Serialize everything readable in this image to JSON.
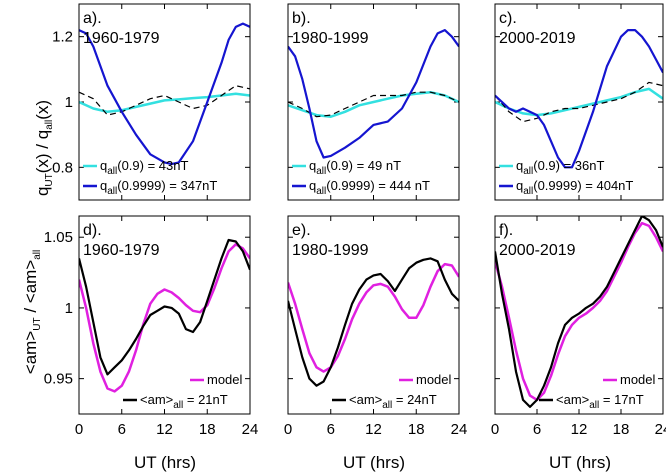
{
  "chart_data": [
    {
      "type": "line",
      "panel_label": "a).",
      "period": "1960-1979",
      "ylabel": "q_UT(x) / q_all(x)",
      "xlim": [
        0,
        24
      ],
      "ylim": [
        0.7,
        1.3
      ],
      "series": [
        {
          "name": "q_all(0.9) = 43nT",
          "color": "#33e0e0",
          "dash": "",
          "width": 2.5,
          "x": [
            0,
            2,
            4,
            6,
            8,
            10,
            12,
            14,
            16,
            18,
            20,
            22,
            24
          ],
          "y": [
            1.0,
            0.98,
            0.97,
            0.975,
            0.985,
            0.995,
            1.005,
            1.008,
            1.012,
            1.015,
            1.02,
            1.025,
            1.02
          ]
        },
        {
          "name": "",
          "color": "#000000",
          "dash": "6,4",
          "width": 1.2,
          "x": [
            0,
            2,
            4,
            6,
            8,
            10,
            12,
            14,
            16,
            18,
            20,
            22,
            24
          ],
          "y": [
            1.03,
            1.01,
            0.96,
            0.97,
            0.99,
            1.01,
            1.02,
            1.0,
            0.98,
            0.99,
            1.02,
            1.05,
            1.04
          ]
        },
        {
          "name": "q_all(0.9999) = 347nT",
          "color": "#1515d0",
          "dash": "",
          "width": 2.2,
          "x": [
            0,
            1,
            2,
            4,
            6,
            8,
            10,
            12,
            13,
            14,
            16,
            18,
            20,
            21,
            22,
            23,
            24
          ],
          "y": [
            1.22,
            1.21,
            1.17,
            1.05,
            0.97,
            0.9,
            0.84,
            0.815,
            0.81,
            0.815,
            0.88,
            1.0,
            1.12,
            1.19,
            1.23,
            1.24,
            1.23
          ]
        }
      ]
    },
    {
      "type": "line",
      "panel_label": "b).",
      "period": "1980-1999",
      "xlim": [
        0,
        24
      ],
      "ylim": [
        0.7,
        1.3
      ],
      "series": [
        {
          "name": "q_all(0.9) = 49 nT",
          "color": "#33e0e0",
          "dash": "",
          "width": 2.5,
          "x": [
            0,
            2,
            4,
            6,
            8,
            10,
            12,
            14,
            16,
            18,
            20,
            22,
            24
          ],
          "y": [
            0.99,
            0.975,
            0.96,
            0.955,
            0.97,
            0.99,
            1.0,
            1.01,
            1.02,
            1.025,
            1.03,
            1.02,
            1.0
          ]
        },
        {
          "name": "",
          "color": "#000000",
          "dash": "6,4",
          "width": 1.2,
          "x": [
            0,
            2,
            4,
            6,
            8,
            10,
            12,
            14,
            16,
            18,
            20,
            22,
            24
          ],
          "y": [
            1.0,
            0.98,
            0.955,
            0.96,
            0.98,
            1.0,
            1.02,
            1.02,
            1.02,
            1.03,
            1.03,
            1.02,
            1.0
          ]
        },
        {
          "name": "q_all(0.9999) = 444 nT",
          "color": "#1515d0",
          "dash": "",
          "width": 2.2,
          "x": [
            0,
            1,
            2,
            3,
            4,
            5,
            6,
            8,
            10,
            12,
            14,
            16,
            18,
            20,
            21,
            22,
            23,
            24
          ],
          "y": [
            1.17,
            1.14,
            1.07,
            0.98,
            0.88,
            0.83,
            0.835,
            0.86,
            0.89,
            0.93,
            0.94,
            0.98,
            1.06,
            1.17,
            1.21,
            1.22,
            1.2,
            1.17
          ]
        }
      ]
    },
    {
      "type": "line",
      "panel_label": "c).",
      "period": "2000-2019",
      "xlim": [
        0,
        24
      ],
      "ylim": [
        0.7,
        1.3
      ],
      "series": [
        {
          "name": "q_all(0.9) = 36nT",
          "color": "#33e0e0",
          "dash": "",
          "width": 2.5,
          "x": [
            0,
            2,
            4,
            6,
            8,
            10,
            12,
            14,
            16,
            18,
            20,
            22,
            24
          ],
          "y": [
            1.0,
            0.98,
            0.965,
            0.96,
            0.965,
            0.975,
            0.985,
            0.995,
            1.005,
            1.015,
            1.03,
            1.04,
            1.01
          ]
        },
        {
          "name": "",
          "color": "#000000",
          "dash": "6,4",
          "width": 1.2,
          "x": [
            0,
            2,
            4,
            6,
            8,
            10,
            12,
            14,
            16,
            18,
            20,
            22,
            24
          ],
          "y": [
            1.02,
            0.97,
            0.94,
            0.95,
            0.97,
            0.98,
            0.98,
            0.99,
            1.0,
            1.01,
            1.03,
            1.06,
            1.05
          ]
        },
        {
          "name": "q_all(0.9999) = 404nT",
          "color": "#1515d0",
          "dash": "",
          "width": 2.2,
          "x": [
            0,
            2,
            3,
            4,
            6,
            7,
            8,
            9,
            10,
            11,
            12,
            14,
            16,
            18,
            19,
            20,
            21,
            22,
            23,
            24
          ],
          "y": [
            1.02,
            0.98,
            0.97,
            0.98,
            0.96,
            0.93,
            0.88,
            0.83,
            0.8,
            0.8,
            0.85,
            0.97,
            1.11,
            1.2,
            1.22,
            1.22,
            1.2,
            1.17,
            1.13,
            1.09
          ]
        }
      ]
    },
    {
      "type": "line",
      "panel_label": "d).",
      "period": "1960-1979",
      "ylabel": "<am>_UT / <am>_all",
      "xlabel": "UT (hrs)",
      "xlim": [
        0,
        24
      ],
      "ylim": [
        0.925,
        1.065
      ],
      "series": [
        {
          "name": "model",
          "color": "#e020e0",
          "dash": "",
          "width": 2.5,
          "x": [
            0,
            1,
            2,
            3,
            4,
            5,
            6,
            7,
            8,
            9,
            10,
            11,
            12,
            13,
            14,
            15,
            16,
            17,
            18,
            19,
            20,
            21,
            22,
            23,
            24
          ],
          "y": [
            1.02,
            1.0,
            0.975,
            0.955,
            0.943,
            0.941,
            0.945,
            0.955,
            0.97,
            0.988,
            1.003,
            1.01,
            1.013,
            1.011,
            1.007,
            1.002,
            0.998,
            0.997,
            1.002,
            1.014,
            1.028,
            1.04,
            1.045,
            1.042,
            1.035
          ]
        },
        {
          "name": "<am>_all = 21nT",
          "color": "#000000",
          "dash": "",
          "width": 2.2,
          "x": [
            0,
            1,
            2,
            3,
            4,
            5,
            6,
            7,
            8,
            9,
            10,
            11,
            12,
            13,
            14,
            15,
            16,
            17,
            18,
            19,
            20,
            21,
            22,
            23,
            24
          ],
          "y": [
            1.035,
            1.015,
            0.99,
            0.965,
            0.953,
            0.958,
            0.963,
            0.97,
            0.978,
            0.987,
            0.995,
            0.998,
            1.001,
            1.0,
            0.996,
            0.985,
            0.983,
            0.99,
            1.005,
            1.02,
            1.035,
            1.048,
            1.047,
            1.04,
            1.027
          ]
        }
      ]
    },
    {
      "type": "line",
      "panel_label": "e).",
      "period": "1980-1999",
      "xlabel": "UT (hrs)",
      "xlim": [
        0,
        24
      ],
      "ylim": [
        0.925,
        1.065
      ],
      "series": [
        {
          "name": "model",
          "color": "#e020e0",
          "dash": "",
          "width": 2.5,
          "x": [
            0,
            1,
            2,
            3,
            4,
            5,
            6,
            7,
            8,
            9,
            10,
            11,
            12,
            13,
            14,
            15,
            16,
            17,
            18,
            19,
            20,
            21,
            22,
            23,
            24
          ],
          "y": [
            1.018,
            1.003,
            0.985,
            0.968,
            0.958,
            0.955,
            0.958,
            0.966,
            0.978,
            0.992,
            1.003,
            1.011,
            1.016,
            1.017,
            1.015,
            1.008,
            0.999,
            0.993,
            0.993,
            1.002,
            1.015,
            1.026,
            1.031,
            1.03,
            1.022
          ]
        },
        {
          "name": "<am>_all = 24nT",
          "color": "#000000",
          "dash": "",
          "width": 2.2,
          "x": [
            0,
            1,
            2,
            3,
            4,
            5,
            6,
            7,
            8,
            9,
            10,
            11,
            12,
            13,
            14,
            15,
            16,
            17,
            18,
            19,
            20,
            21,
            22,
            23,
            24
          ],
          "y": [
            1.005,
            0.985,
            0.965,
            0.95,
            0.945,
            0.948,
            0.958,
            0.972,
            0.988,
            1.003,
            1.013,
            1.02,
            1.023,
            1.024,
            1.019,
            1.012,
            1.02,
            1.028,
            1.032,
            1.034,
            1.035,
            1.033,
            1.02,
            1.01,
            1.005
          ]
        }
      ]
    },
    {
      "type": "line",
      "panel_label": "f).",
      "period": "2000-2019",
      "xlabel": "UT (hrs)",
      "xlim": [
        0,
        24
      ],
      "ylim": [
        0.925,
        1.065
      ],
      "series": [
        {
          "name": "model",
          "color": "#e020e0",
          "dash": "",
          "width": 2.5,
          "x": [
            0,
            1,
            2,
            3,
            4,
            5,
            6,
            7,
            8,
            9,
            10,
            11,
            12,
            13,
            14,
            15,
            16,
            17,
            18,
            19,
            20,
            21,
            22,
            23,
            24
          ],
          "y": [
            1.033,
            1.015,
            0.993,
            0.97,
            0.95,
            0.938,
            0.935,
            0.94,
            0.952,
            0.967,
            0.98,
            0.988,
            0.993,
            0.996,
            1.0,
            1.005,
            1.012,
            1.022,
            1.032,
            1.043,
            1.053,
            1.06,
            1.058,
            1.05,
            1.04
          ]
        },
        {
          "name": "<am>_all = 17nT",
          "color": "#000000",
          "dash": "",
          "width": 2.2,
          "x": [
            0,
            1,
            2,
            3,
            4,
            5,
            6,
            7,
            8,
            9,
            10,
            11,
            12,
            13,
            14,
            15,
            16,
            17,
            18,
            19,
            20,
            21,
            22,
            23,
            24
          ],
          "y": [
            1.04,
            1.01,
            0.985,
            0.955,
            0.935,
            0.93,
            0.935,
            0.945,
            0.958,
            0.975,
            0.988,
            0.993,
            0.996,
            1.0,
            1.003,
            1.008,
            1.015,
            1.025,
            1.035,
            1.045,
            1.055,
            1.065,
            1.062,
            1.055,
            1.043
          ]
        }
      ]
    }
  ],
  "axes_text": {
    "top_ylabel_main": "q",
    "top_ylabel_sub1": "UT",
    "top_ylabel_mid": "(x) / q",
    "top_ylabel_sub2": "all",
    "top_ylabel_end": "(x)",
    "bottom_ylabel_main": "<am>",
    "bottom_ylabel_sub1": "UT",
    "bottom_ylabel_mid": " / <am>",
    "bottom_ylabel_sub2": "all",
    "xlabel": "UT (hrs)",
    "top_yticks": [
      "0.8",
      "1",
      "1.2"
    ],
    "bottom_yticks": [
      "0.95",
      "1",
      "1.05"
    ],
    "xticks": [
      "0",
      "6",
      "12",
      "18",
      "24"
    ]
  },
  "legend": {
    "top": [
      {
        "panel": 0,
        "entries": [
          {
            "prefix": "q",
            "sub": "all",
            "suffix": "(0.9) = 43nT",
            "color": "#33e0e0"
          },
          {
            "prefix": "q",
            "sub": "all",
            "suffix": "(0.9999) = 347nT",
            "color": "#1515d0"
          }
        ]
      },
      {
        "panel": 1,
        "entries": [
          {
            "prefix": "q",
            "sub": "all",
            "suffix": "(0.9) = 49 nT",
            "color": "#33e0e0"
          },
          {
            "prefix": "q",
            "sub": "all",
            "suffix": "(0.9999) = 444 nT",
            "color": "#1515d0"
          }
        ]
      },
      {
        "panel": 2,
        "entries": [
          {
            "prefix": "q",
            "sub": "all",
            "suffix": "(0.9) = 36nT",
            "color": "#33e0e0"
          },
          {
            "prefix": "q",
            "sub": "all",
            "suffix": "(0.9999) = 404nT",
            "color": "#1515d0"
          }
        ]
      }
    ],
    "bottom": [
      {
        "panel": 3,
        "entries": [
          {
            "prefix": "model",
            "sub": "",
            "suffix": "",
            "color": "#e020e0"
          },
          {
            "prefix": "<am>",
            "sub": "all",
            "suffix": " = 21nT",
            "color": "#000000"
          }
        ]
      },
      {
        "panel": 4,
        "entries": [
          {
            "prefix": "model",
            "sub": "",
            "suffix": "",
            "color": "#e020e0"
          },
          {
            "prefix": "<am>",
            "sub": "all",
            "suffix": " = 24nT",
            "color": "#000000"
          }
        ]
      },
      {
        "panel": 5,
        "entries": [
          {
            "prefix": "model",
            "sub": "",
            "suffix": "",
            "color": "#e020e0"
          },
          {
            "prefix": "<am>",
            "sub": "all",
            "suffix": " = 17nT",
            "color": "#000000"
          }
        ]
      }
    ]
  }
}
